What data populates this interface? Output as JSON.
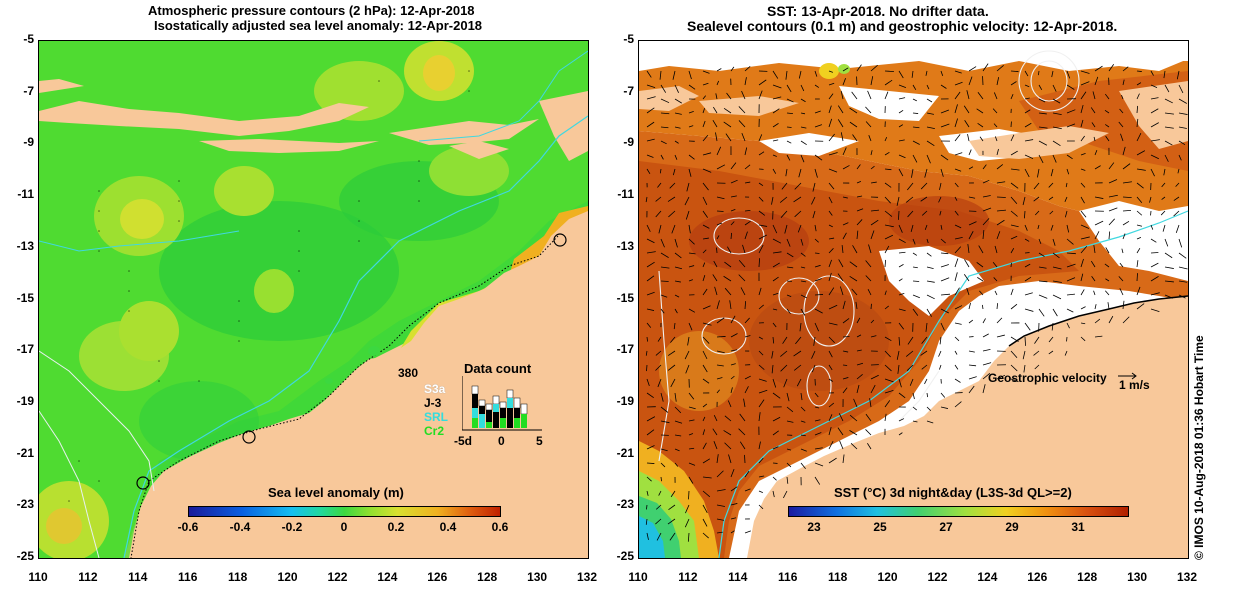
{
  "left_panel": {
    "title_line1": "Atmospheric pressure contours (2 hPa): 12-Apr-2018",
    "title_line2": "Isostatically adjusted sea level anomaly: 12-Apr-2018",
    "colorbar_title": "Sea level anomaly (m)",
    "colorbar_ticks": [
      "-0.6",
      "-0.4",
      "-0.2",
      "0",
      "0.2",
      "0.4",
      "0.6"
    ],
    "data_count": {
      "title": "Data count",
      "max_label": "380",
      "missions": [
        {
          "name": "S3a",
          "color": "#ffffff"
        },
        {
          "name": "J-3",
          "color": "#000000"
        },
        {
          "name": "SRL",
          "color": "#33dddd"
        },
        {
          "name": "Cr2",
          "color": "#22dd22"
        }
      ],
      "axis_labels": [
        "-5d",
        "0",
        "5"
      ]
    }
  },
  "right_panel": {
    "title_line1": "SST: 13-Apr-2018. No drifter data.",
    "title_line2": "Sealevel contours (0.1 m) and geostrophic velocity: 12-Apr-2018.",
    "colorbar_title": "SST (°C) 3d night&day (L3S-3d QL>=2)",
    "colorbar_ticks": [
      "23",
      "25",
      "27",
      "29",
      "31"
    ],
    "velocity_label": "Geostrophic velocity",
    "velocity_unit": "1 m/s"
  },
  "axes": {
    "lat_ticks": [
      "-5",
      "-7",
      "-9",
      "-11",
      "-13",
      "-15",
      "-17",
      "-19",
      "-21",
      "-23",
      "-25"
    ],
    "lon_ticks": [
      "110",
      "112",
      "114",
      "116",
      "118",
      "120",
      "122",
      "124",
      "126",
      "128",
      "130",
      "132"
    ]
  },
  "credit": "©  IMOS 10-Aug-2018 01:36 Hobart Time",
  "colors": {
    "land": "#f8c89a",
    "sla_scale": [
      "#1a1a9a",
      "#0a5fe0",
      "#16bff0",
      "#22d8a0",
      "#3cd840",
      "#8fe030",
      "#d8e030",
      "#f0b020",
      "#e06010",
      "#c02000"
    ],
    "sst_scale": [
      "#1a1aa0",
      "#1070e0",
      "#20c0e0",
      "#40d070",
      "#a0e040",
      "#f0d020",
      "#f09010",
      "#d85010",
      "#b02000"
    ]
  }
}
